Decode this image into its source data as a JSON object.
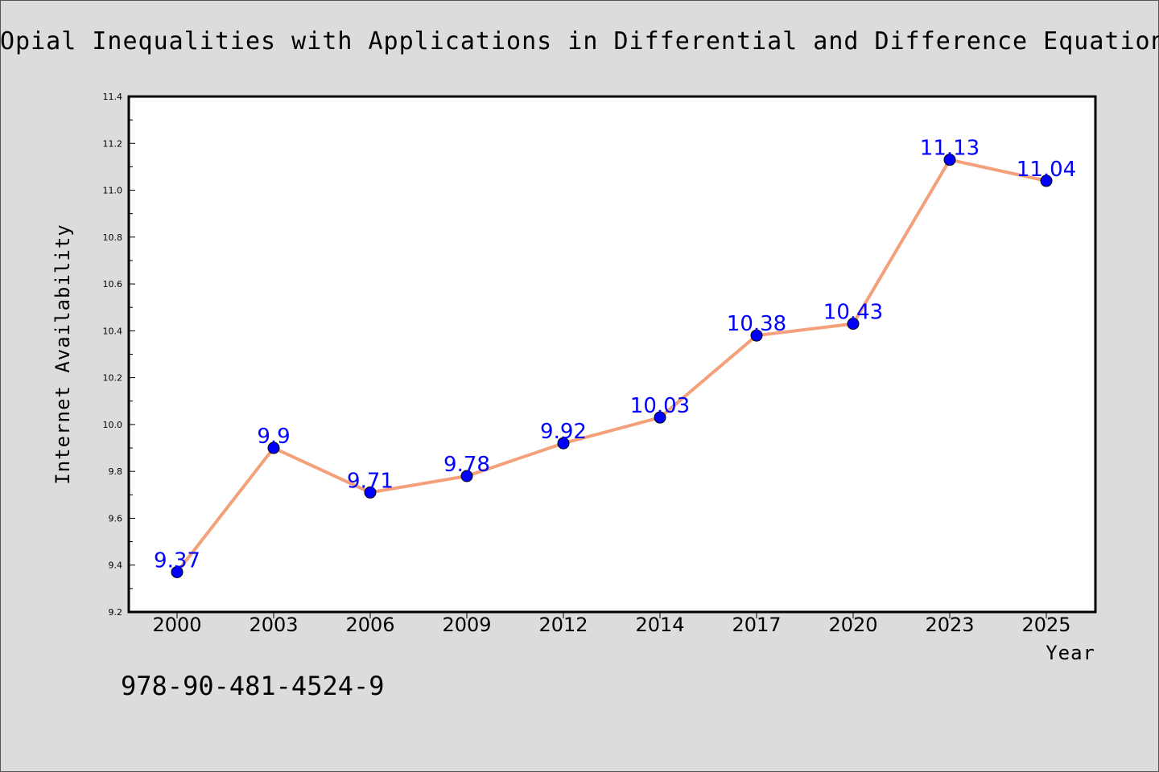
{
  "title": "Opial Inequalities with Applications in Differential and Difference Equations",
  "isbn": "978-90-481-4524-9",
  "chart_data": {
    "type": "line",
    "categories": [
      "2000",
      "2003",
      "2006",
      "2009",
      "2012",
      "2014",
      "2017",
      "2020",
      "2023",
      "2025"
    ],
    "values": [
      9.37,
      9.9,
      9.71,
      9.78,
      9.92,
      10.03,
      10.38,
      10.43,
      11.13,
      11.04
    ],
    "data_labels": [
      "9.37",
      "9.9",
      "9.71",
      "9.78",
      "9.92",
      "10.03",
      "10.38",
      "10.43",
      "11.13",
      "11.04"
    ],
    "xlabel": "Year",
    "ylabel": "Internet Availability",
    "ylim": [
      9.2,
      11.4
    ],
    "yticks": [
      "9.2",
      "9.4",
      "9.6",
      "9.8",
      "10.0",
      "10.2",
      "10.4",
      "10.6",
      "10.8",
      "11.0",
      "11.2",
      "11.4"
    ],
    "grid": false,
    "line_color": "#f4a07a",
    "marker_color": "#0000ff",
    "label_color": "#0000ff"
  }
}
